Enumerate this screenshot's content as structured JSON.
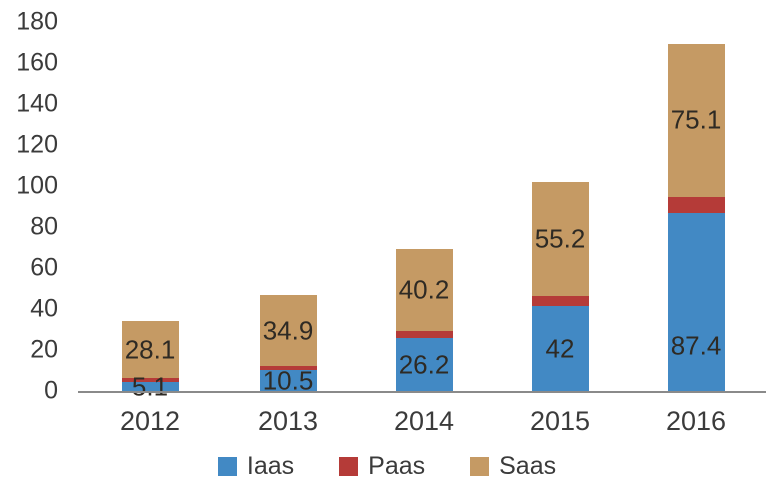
{
  "chart_data": {
    "type": "bar",
    "stacked": true,
    "title": "",
    "xlabel": "",
    "ylabel": "",
    "categories": [
      "2012",
      "2013",
      "2014",
      "2015",
      "2016"
    ],
    "series": [
      {
        "name": "Iaas",
        "color": "#4289c4",
        "values": [
          5.1,
          10.5,
          26.2,
          42,
          87.4
        ],
        "labels": [
          "5.1",
          "10.5",
          "26.2",
          "42",
          "87.4"
        ],
        "values_estimated": false
      },
      {
        "name": "Paas",
        "color": "#b53b38",
        "values": [
          1.5,
          2,
          3.5,
          5,
          7.5
        ],
        "labels": [
          "",
          "",
          "",
          "",
          ""
        ],
        "values_estimated": true
      },
      {
        "name": "Saas",
        "color": "#c59a64",
        "values": [
          28.1,
          34.9,
          40.2,
          55.2,
          75.1
        ],
        "labels": [
          "28.1",
          "34.9",
          "40.2",
          "55.2",
          "75.1"
        ],
        "values_estimated": false
      }
    ],
    "ylim": [
      0,
      180
    ],
    "ytick_step": 20,
    "yticks": [
      "0",
      "20",
      "40",
      "60",
      "80",
      "100",
      "120",
      "140",
      "160",
      "180"
    ],
    "grid": false,
    "legend_position": "bottom",
    "legend": [
      {
        "label": "Iaas",
        "color": "#4289c4"
      },
      {
        "label": "Paas",
        "color": "#b53b38"
      },
      {
        "label": "Saas",
        "color": "#c59a64"
      }
    ]
  },
  "colors": {
    "background": "#ffffff",
    "axis_line": "#8a8a8a",
    "tick_text": "#3b3b3b",
    "bar_label_text": "#2e2a24"
  }
}
